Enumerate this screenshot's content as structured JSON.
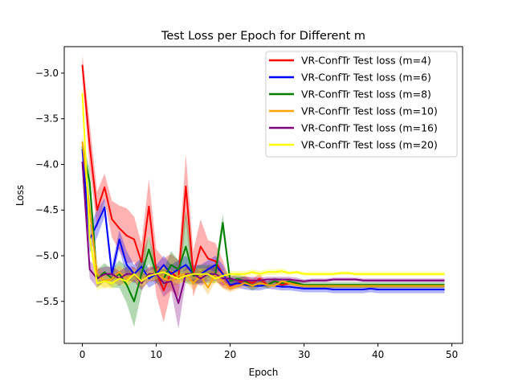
{
  "chart_data": {
    "type": "line",
    "title": "Test Loss per Epoch for Different m",
    "xlabel": "Epoch",
    "ylabel": "Loss",
    "xlim": [
      -2.45,
      51.45
    ],
    "ylim": [
      -5.96,
      -2.71
    ],
    "xticks": [
      0,
      10,
      20,
      30,
      40,
      50
    ],
    "yticks": [
      -5.5,
      -5.0,
      -4.5,
      -4.0,
      -3.5,
      -3.0
    ],
    "xtick_labels": [
      "0",
      "10",
      "20",
      "30",
      "40",
      "50"
    ],
    "ytick_labels": [
      "−5.5",
      "−5.0",
      "−4.5",
      "−4.0",
      "−3.5",
      "−3.0"
    ],
    "legend_position": "upper right",
    "grid": false,
    "x": [
      0,
      1,
      2,
      3,
      4,
      5,
      6,
      7,
      8,
      9,
      10,
      11,
      12,
      13,
      14,
      15,
      16,
      17,
      18,
      19,
      20,
      21,
      22,
      23,
      24,
      25,
      26,
      27,
      28,
      29,
      30,
      31,
      32,
      33,
      34,
      35,
      36,
      37,
      38,
      39,
      40,
      41,
      42,
      43,
      44,
      45,
      46,
      47,
      48,
      49
    ],
    "series": [
      {
        "name": "VR-ConfTr Test loss (m=4)",
        "color": "#ff0000",
        "values": [
          -2.91,
          -3.8,
          -4.5,
          -4.25,
          -4.6,
          -4.7,
          -4.78,
          -4.82,
          -5.07,
          -4.46,
          -5.18,
          -5.38,
          -5.18,
          -5.25,
          -4.24,
          -5.2,
          -4.9,
          -5.03,
          -5.06,
          -5.2,
          -5.33,
          -5.3,
          -5.27,
          -5.3,
          -5.25,
          -5.32,
          -5.28,
          -5.32,
          -5.3,
          -5.31,
          -5.33,
          -5.33,
          -5.33,
          -5.33,
          -5.33,
          -5.33,
          -5.33,
          -5.33,
          -5.33,
          -5.33,
          -5.33,
          -5.33,
          -5.33,
          -5.33,
          -5.33,
          -5.33,
          -5.33,
          -5.33,
          -5.33,
          -5.33
        ],
        "band": [
          0.12,
          0.25,
          0.2,
          0.15,
          0.2,
          0.25,
          0.3,
          0.25,
          0.2,
          0.3,
          0.25,
          0.35,
          0.2,
          0.2,
          0.35,
          0.25,
          0.3,
          0.2,
          0.2,
          0.15,
          0.05,
          0.05,
          0.05,
          0.05,
          0.05,
          0.03,
          0.03,
          0.03,
          0.02,
          0.02,
          0.02,
          0.02,
          0.02,
          0.02,
          0.02,
          0.02,
          0.02,
          0.02,
          0.02,
          0.02,
          0.02,
          0.02,
          0.02,
          0.02,
          0.02,
          0.02,
          0.02,
          0.02,
          0.02,
          0.02
        ]
      },
      {
        "name": "VR-ConfTr Test loss (m=6)",
        "color": "#0000ff",
        "values": [
          -3.83,
          -4.82,
          -4.65,
          -4.47,
          -5.2,
          -4.82,
          -5.1,
          -5.2,
          -5.12,
          -5.25,
          -5.2,
          -5.1,
          -5.2,
          -5.15,
          -5.1,
          -5.2,
          -5.2,
          -5.15,
          -5.1,
          -5.2,
          -5.32,
          -5.3,
          -5.32,
          -5.33,
          -5.33,
          -5.32,
          -5.33,
          -5.34,
          -5.34,
          -5.35,
          -5.36,
          -5.36,
          -5.36,
          -5.36,
          -5.37,
          -5.37,
          -5.37,
          -5.37,
          -5.37,
          -5.36,
          -5.37,
          -5.37,
          -5.37,
          -5.37,
          -5.37,
          -5.37,
          -5.37,
          -5.37,
          -5.37,
          -5.37
        ],
        "band": [
          0.1,
          0.15,
          0.15,
          0.1,
          0.1,
          0.1,
          0.15,
          0.1,
          0.1,
          0.1,
          0.1,
          0.1,
          0.1,
          0.1,
          0.1,
          0.1,
          0.1,
          0.1,
          0.1,
          0.1,
          0.05,
          0.05,
          0.05,
          0.05,
          0.05,
          0.04,
          0.04,
          0.04,
          0.04,
          0.04,
          0.04,
          0.04,
          0.04,
          0.04,
          0.04,
          0.04,
          0.04,
          0.04,
          0.04,
          0.04,
          0.04,
          0.04,
          0.04,
          0.04,
          0.04,
          0.04,
          0.04,
          0.04,
          0.04,
          0.04
        ]
      },
      {
        "name": "VR-ConfTr Test loss (m=8)",
        "color": "#008000",
        "values": [
          -3.8,
          -4.2,
          -5.25,
          -5.18,
          -5.25,
          -5.2,
          -5.32,
          -5.5,
          -5.2,
          -4.93,
          -5.2,
          -5.25,
          -5.1,
          -5.15,
          -4.9,
          -5.22,
          -5.2,
          -5.2,
          -5.2,
          -4.64,
          -5.28,
          -5.25,
          -5.28,
          -5.33,
          -5.3,
          -5.32,
          -5.28,
          -5.3,
          -5.28,
          -5.3,
          -5.32,
          -5.32,
          -5.32,
          -5.32,
          -5.32,
          -5.32,
          -5.32,
          -5.32,
          -5.32,
          -5.32,
          -5.32,
          -5.32,
          -5.32,
          -5.32,
          -5.32,
          -5.32,
          -5.32,
          -5.32,
          -5.32,
          -5.32
        ],
        "band": [
          0.08,
          0.15,
          0.1,
          0.1,
          0.1,
          0.15,
          0.2,
          0.28,
          0.2,
          0.15,
          0.1,
          0.1,
          0.15,
          0.1,
          0.4,
          0.1,
          0.1,
          0.1,
          0.1,
          0.1,
          0.05,
          0.05,
          0.05,
          0.05,
          0.04,
          0.04,
          0.04,
          0.04,
          0.03,
          0.03,
          0.03,
          0.03,
          0.03,
          0.03,
          0.03,
          0.03,
          0.03,
          0.03,
          0.03,
          0.03,
          0.03,
          0.03,
          0.03,
          0.03,
          0.03,
          0.03,
          0.03,
          0.03,
          0.03,
          0.03
        ]
      },
      {
        "name": "VR-ConfTr Test loss (m=10)",
        "color": "#ffa500",
        "values": [
          -3.75,
          -4.5,
          -5.2,
          -5.28,
          -5.25,
          -5.18,
          -5.25,
          -5.2,
          -5.28,
          -5.2,
          -5.2,
          -5.25,
          -5.28,
          -5.22,
          -5.2,
          -5.3,
          -5.22,
          -5.35,
          -5.2,
          -5.28,
          -5.36,
          -5.33,
          -5.3,
          -5.33,
          -5.3,
          -5.32,
          -5.33,
          -5.28,
          -5.3,
          -5.32,
          -5.33,
          -5.33,
          -5.33,
          -5.33,
          -5.33,
          -5.33,
          -5.33,
          -5.33,
          -5.33,
          -5.33,
          -5.33,
          -5.33,
          -5.33,
          -5.33,
          -5.33,
          -5.33,
          -5.33,
          -5.33,
          -5.33,
          -5.33
        ],
        "band": [
          0.08,
          0.12,
          0.1,
          0.08,
          0.08,
          0.08,
          0.08,
          0.08,
          0.08,
          0.08,
          0.08,
          0.08,
          0.08,
          0.08,
          0.08,
          0.08,
          0.08,
          0.08,
          0.08,
          0.08,
          0.04,
          0.04,
          0.04,
          0.04,
          0.03,
          0.03,
          0.03,
          0.03,
          0.03,
          0.03,
          0.02,
          0.02,
          0.02,
          0.02,
          0.02,
          0.02,
          0.02,
          0.02,
          0.02,
          0.02,
          0.02,
          0.02,
          0.02,
          0.02,
          0.02,
          0.02,
          0.02,
          0.02,
          0.02,
          0.02
        ]
      },
      {
        "name": "VR-ConfTr Test loss (m=16)",
        "color": "#800080",
        "values": [
          -3.97,
          -5.15,
          -5.25,
          -5.2,
          -5.2,
          -5.25,
          -5.2,
          -5.2,
          -5.3,
          -5.2,
          -5.2,
          -5.3,
          -5.28,
          -5.52,
          -5.2,
          -5.2,
          -5.25,
          -5.2,
          -5.2,
          -5.25,
          -5.25,
          -5.27,
          -5.27,
          -5.27,
          -5.27,
          -5.26,
          -5.26,
          -5.26,
          -5.26,
          -5.27,
          -5.28,
          -5.27,
          -5.27,
          -5.27,
          -5.26,
          -5.26,
          -5.26,
          -5.26,
          -5.27,
          -5.27,
          -5.27,
          -5.27,
          -5.27,
          -5.27,
          -5.27,
          -5.27,
          -5.27,
          -5.27,
          -5.27,
          -5.27
        ],
        "band": [
          0.1,
          0.1,
          0.1,
          0.08,
          0.08,
          0.08,
          0.08,
          0.08,
          0.08,
          0.08,
          0.08,
          0.15,
          0.1,
          0.28,
          0.08,
          0.08,
          0.08,
          0.08,
          0.08,
          0.08,
          0.04,
          0.04,
          0.04,
          0.04,
          0.03,
          0.03,
          0.03,
          0.03,
          0.03,
          0.03,
          0.02,
          0.02,
          0.02,
          0.02,
          0.02,
          0.02,
          0.02,
          0.02,
          0.02,
          0.02,
          0.02,
          0.02,
          0.02,
          0.02,
          0.02,
          0.02,
          0.02,
          0.02,
          0.02,
          0.02
        ]
      },
      {
        "name": "VR-ConfTr Test loss (m=20)",
        "color": "#ffff00",
        "values": [
          -3.22,
          -4.8,
          -5.3,
          -5.28,
          -5.3,
          -5.25,
          -5.28,
          -5.2,
          -5.28,
          -5.22,
          -5.2,
          -5.18,
          -5.22,
          -5.25,
          -5.22,
          -5.2,
          -5.2,
          -5.2,
          -5.25,
          -5.22,
          -5.2,
          -5.2,
          -5.2,
          -5.18,
          -5.2,
          -5.18,
          -5.18,
          -5.17,
          -5.19,
          -5.18,
          -5.2,
          -5.2,
          -5.2,
          -5.2,
          -5.2,
          -5.19,
          -5.19,
          -5.2,
          -5.2,
          -5.2,
          -5.2,
          -5.2,
          -5.2,
          -5.2,
          -5.2,
          -5.2,
          -5.2,
          -5.2,
          -5.2,
          -5.2
        ],
        "band": [
          0.1,
          0.1,
          0.08,
          0.06,
          0.06,
          0.06,
          0.06,
          0.06,
          0.06,
          0.06,
          0.06,
          0.06,
          0.06,
          0.06,
          0.06,
          0.06,
          0.06,
          0.06,
          0.06,
          0.06,
          0.03,
          0.03,
          0.03,
          0.03,
          0.03,
          0.03,
          0.03,
          0.03,
          0.02,
          0.02,
          0.02,
          0.02,
          0.02,
          0.02,
          0.02,
          0.02,
          0.02,
          0.02,
          0.02,
          0.02,
          0.02,
          0.02,
          0.02,
          0.02,
          0.02,
          0.02,
          0.02,
          0.02,
          0.02,
          0.02
        ]
      }
    ]
  }
}
